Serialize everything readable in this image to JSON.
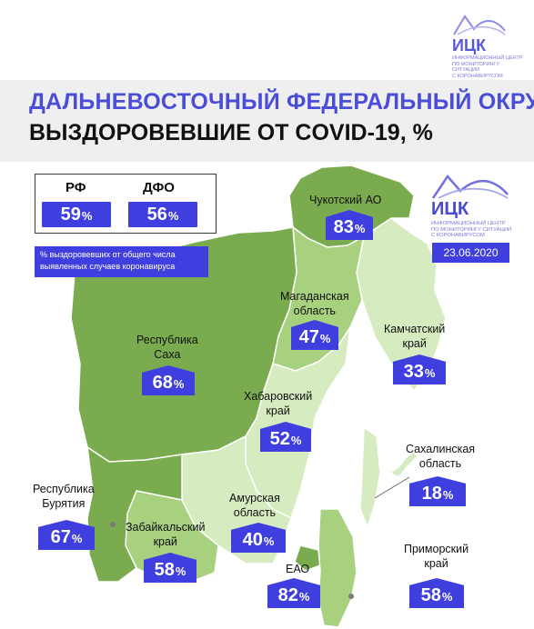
{
  "title": {
    "line1": "ДАЛЬНЕВОСТОЧНЫЙ ФЕДЕРАЛЬНЫЙ ОКРУГ:",
    "line2": "ВЫЗДОРОВЕВШИЕ ОТ COVID-19, %"
  },
  "logo": {
    "name": "ИЦК",
    "subtitle_lines": [
      "ИНФОРМАЦИОННЫЙ ЦЕНТР",
      "ПО МОНИТОРИНГУ СИТУАЦИИ",
      "С КОРОНАВИРУСОМ"
    ]
  },
  "date": "23.06.2020",
  "summary": {
    "rf_label": "РФ",
    "rf_value": "59",
    "rf_unit": "%",
    "dfo_label": "ДФО",
    "dfo_value": "56",
    "dfo_unit": "%",
    "note": "% выздоровевших от общего числа выявленных случаев коронавируса"
  },
  "regions": [
    {
      "name": "Чукотский АО",
      "value": 83,
      "unit": "%"
    },
    {
      "name": "Магаданская область",
      "value": 47,
      "unit": "%"
    },
    {
      "name": "Камчатский край",
      "value": 33,
      "unit": "%"
    },
    {
      "name": "Республика Саха",
      "value": 68,
      "unit": "%"
    },
    {
      "name": "Хабаровский край",
      "value": 52,
      "unit": "%"
    },
    {
      "name": "Сахалинская область",
      "value": 18,
      "unit": "%"
    },
    {
      "name": "Республика Бурятия",
      "value": 67,
      "unit": "%"
    },
    {
      "name": "Забайкальский край",
      "value": 58,
      "unit": "%"
    },
    {
      "name": "Амурская область",
      "value": 40,
      "unit": "%"
    },
    {
      "name": "ЕАО",
      "value": 82,
      "unit": "%"
    },
    {
      "name": "Приморский край",
      "value": 58,
      "unit": "%"
    }
  ],
  "labels": {
    "chukotka": "Чукотский АО",
    "magadan_1": "Магаданская",
    "magadan_2": "область",
    "kamchatka_1": "Камчатский",
    "kamchatka_2": "край",
    "sakha_1": "Республика",
    "sakha_2": "Саха",
    "khabarovsk_1": "Хабаровский",
    "khabarovsk_2": "край",
    "sakhalin_1": "Сахалинская",
    "sakhalin_2": "область",
    "buryatia_1": "Республика",
    "buryatia_2": "Бурятия",
    "zabaikalsky_1": "Забайкальский",
    "zabaikalsky_2": "край",
    "amur_1": "Амурская",
    "amur_2": "область",
    "eao": "ЕАО",
    "primorsky_1": "Приморский",
    "primorsky_2": "край"
  },
  "values": {
    "chukotka": "83",
    "magadan": "47",
    "kamchatka": "33",
    "sakha": "68",
    "khabarovsk": "52",
    "sakhalin": "18",
    "buryatia": "67",
    "zabaikalsky": "58",
    "amur": "40",
    "eao": "82",
    "primorsky": "58",
    "unit": "%"
  },
  "colors": {
    "accent": "#3f3fe0",
    "dark_green": "#7aab4e",
    "mid_green": "#a7d07f",
    "light_green": "#d6ecc0",
    "title_blue": "#4a4dd8"
  }
}
